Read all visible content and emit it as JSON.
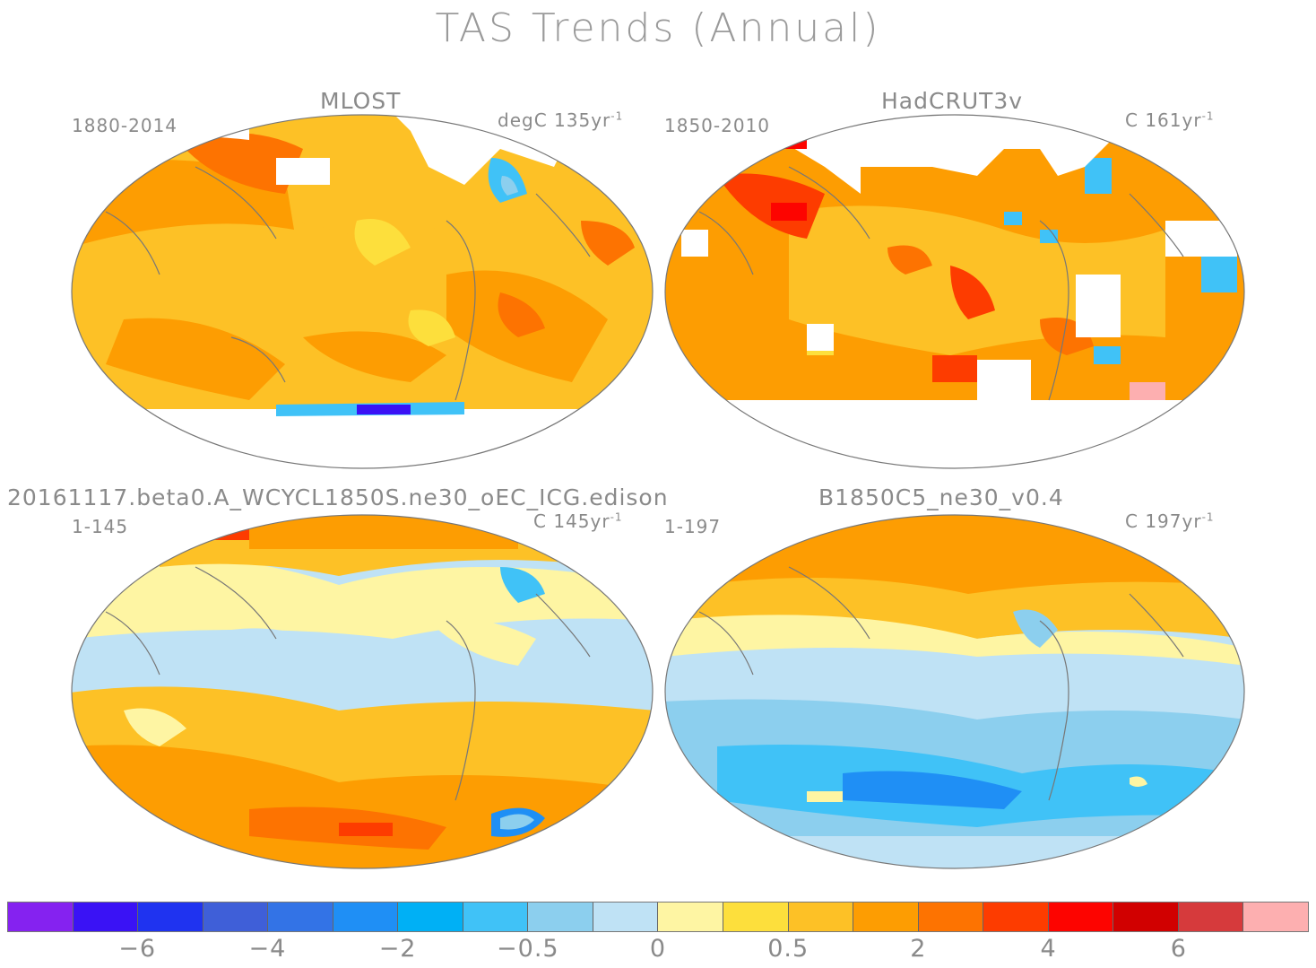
{
  "figure": {
    "title": "TAS Trends (Annual)"
  },
  "panels": [
    {
      "id": "mlost",
      "title": "MLOST",
      "period": "1880-2014",
      "units": "degC 135yr",
      "units_sup": "-1",
      "dominant": "warm"
    },
    {
      "id": "hadcrut",
      "title": "HadCRUT3v",
      "period": "1850-2010",
      "units": "C 161yr",
      "units_sup": "-1",
      "dominant": "warm-patchy"
    },
    {
      "id": "beta0",
      "title": "20161117.beta0.A_WCYCL1850S.ne30_oEC_ICG.edison",
      "period": "1-145",
      "units": "C 145yr",
      "units_sup": "-1",
      "dominant": "mixed"
    },
    {
      "id": "b1850",
      "title": "B1850C5_ne30_v0.4",
      "period": "1-197",
      "units": "C 197yr",
      "units_sup": "-1",
      "dominant": "cool-south"
    }
  ],
  "colorbar": {
    "colors": [
      "#8522f0",
      "#3a12f5",
      "#1f33f0",
      "#3f5fd8",
      "#3373e6",
      "#1f8ff5",
      "#00b0f5",
      "#40c2f7",
      "#8ccfee",
      "#bfe2f5",
      "#fef5a3",
      "#fddf3c",
      "#fdc126",
      "#fd9d02",
      "#fd7301",
      "#fd3c00",
      "#fd0400",
      "#d10000",
      "#d63a3c",
      "#fdafb0"
    ],
    "tick_labels": [
      "−6",
      "−4",
      "−2",
      "−0.5",
      "0",
      "0.5",
      "2",
      "4",
      "6"
    ]
  }
}
